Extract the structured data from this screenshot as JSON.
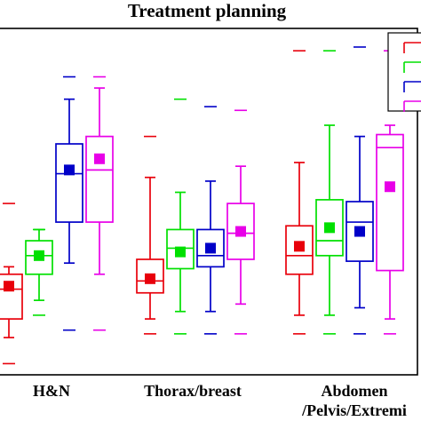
{
  "chart_data": {
    "type": "box",
    "title": "Treatment planning",
    "xlabel": "",
    "ylabel": "",
    "categories": [
      "H&N",
      "Thorax/breast",
      "Abdomen\n/Pelvis/Extremi"
    ],
    "grid": false,
    "legend_position": "top-right",
    "colors": [
      "#e8000b",
      "#00e000",
      "#0000c8",
      "#e800e8"
    ],
    "series": [
      {
        "color": "#e8000b",
        "boxes": [
          {
            "mean": 10.8,
            "q1": 2.0,
            "median": 10.0,
            "q3": 14.0,
            "whisker_low": -3.0,
            "whisker_high": 16.0,
            "min": -10.0,
            "max": 33.0
          },
          {
            "mean": 12.8,
            "q1": 9.0,
            "median": 12.2,
            "q3": 18.0,
            "whisker_low": 2.0,
            "whisker_high": 40.0,
            "min": -2.0,
            "max": 51.0
          },
          {
            "mean": 21.5,
            "q1": 14.0,
            "median": 19.0,
            "q3": 27.0,
            "whisker_low": 3.0,
            "whisker_high": 44.0,
            "min": -2.0,
            "max": 74.0
          }
        ]
      },
      {
        "color": "#00e000",
        "boxes": [
          {
            "mean": 19.0,
            "q1": 14.0,
            "median": 19.0,
            "q3": 23.0,
            "whisker_low": 7.0,
            "whisker_high": 26.0,
            "min": 3.0,
            "max": 26.0
          },
          {
            "mean": 20.0,
            "q1": 15.5,
            "median": 21.0,
            "q3": 26.0,
            "whisker_low": 4.0,
            "whisker_high": 36.0,
            "min": -2.0,
            "max": 61.0
          },
          {
            "mean": 26.5,
            "q1": 19.0,
            "median": 23.0,
            "q3": 34.0,
            "whisker_low": 3.0,
            "whisker_high": 54.0,
            "min": -2.0,
            "max": 74.0
          }
        ]
      },
      {
        "color": "#0000c8",
        "boxes": [
          {
            "mean": 42.0,
            "q1": 28.0,
            "median": 41.0,
            "q3": 49.0,
            "whisker_low": 17.0,
            "whisker_high": 61.0,
            "min": -1.0,
            "max": 67.0
          },
          {
            "mean": 21.0,
            "q1": 16.0,
            "median": 19.0,
            "q3": 26.0,
            "whisker_low": 4.0,
            "whisker_high": 39.0,
            "min": -2.0,
            "max": 59.0
          },
          {
            "mean": 25.5,
            "q1": 17.5,
            "median": 28.0,
            "q3": 33.5,
            "whisker_low": 5.0,
            "whisker_high": 51.0,
            "min": -2.0,
            "max": 75.0
          }
        ]
      },
      {
        "color": "#e800e8",
        "boxes": [
          {
            "mean": 45.0,
            "q1": 28.0,
            "median": 42.0,
            "q3": 51.0,
            "whisker_low": 14.0,
            "whisker_high": 64.0,
            "min": -1.0,
            "max": 67.0
          },
          {
            "mean": 25.5,
            "q1": 18.0,
            "median": 25.0,
            "q3": 33.0,
            "whisker_low": 6.0,
            "whisker_high": 43.0,
            "min": -2.0,
            "max": 58.0
          },
          {
            "mean": 37.5,
            "q1": 15.0,
            "median": 48.0,
            "q3": 51.5,
            "whisker_low": 2.0,
            "whisker_high": 54.0,
            "min": -2.0,
            "max": 74.0
          }
        ]
      }
    ]
  }
}
